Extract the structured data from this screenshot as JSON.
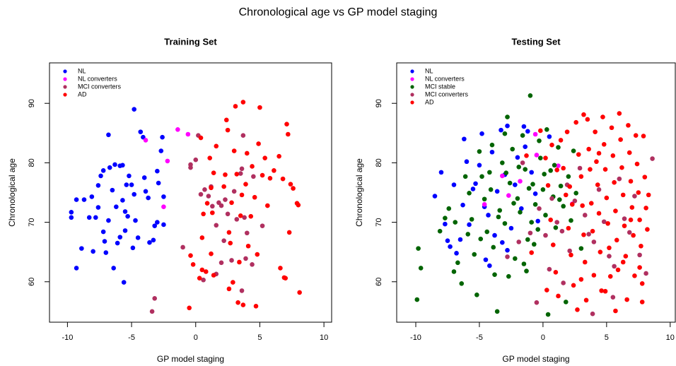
{
  "title": "Chronological age vs GP model staging",
  "chart_data": [
    {
      "type": "scatter",
      "title": "Training Set",
      "x_label": "GP model staging",
      "y_label": "Chronological age",
      "xlim": [
        -11.4,
        10.6
      ],
      "ylim": [
        53.2,
        96.8
      ],
      "xticks": [
        -10,
        -5,
        0,
        5,
        10
      ],
      "yticks": [
        60,
        70,
        80,
        90
      ],
      "legend": "top-left",
      "series": [
        {
          "name": "NL",
          "color": "#0000ff",
          "x": [
            -9.7,
            -9.7,
            -9.3,
            -9.3,
            -8.9,
            -8.7,
            -8.3,
            -8.1,
            -8,
            -7.8,
            -7.6,
            -7.6,
            -7.4,
            -7.2,
            -7.2,
            -7.1,
            -7,
            -6.8,
            -6.8,
            -6.7,
            -6.5,
            -6.4,
            -6.3,
            -6.2,
            -6.1,
            -5.9,
            -5.9,
            -5.7,
            -5.7,
            -5.6,
            -5.5,
            -5.5,
            -5.4,
            -5.3,
            -5.2,
            -5,
            -4.9,
            -4.8,
            -4.8,
            -4.7,
            -4.5,
            -4.3,
            -4.1,
            -4,
            -3.9,
            -3.7,
            -3.6,
            -3.3,
            -3.2,
            -3,
            -3,
            -2.9,
            -2.7,
            -2.6,
            -2.5,
            -2.5
          ],
          "y": [
            71.7,
            70.8,
            73.8,
            62.3,
            65.6,
            73.8,
            70.8,
            74.3,
            65.1,
            70.8,
            72.5,
            76.2,
            77.8,
            68.4,
            78.7,
            66.8,
            64.9,
            70.3,
            84.7,
            79.2,
            75.4,
            62.3,
            79.7,
            72.6,
            66.5,
            79.5,
            67.5,
            73.7,
            79.6,
            59.9,
            71.8,
            68.6,
            76.3,
            71,
            77.8,
            76.3,
            65.7,
            74.7,
            89,
            70.3,
            67.4,
            85.2,
            84.3,
            77.5,
            75.2,
            74.1,
            66.6,
            67,
            69.4,
            70,
            78.6,
            76.6,
            82,
            84.3,
            74.3,
            69.6
          ]
        },
        {
          "name": "NL converters",
          "color": "#ff00ff",
          "x": [
            -3.9,
            -2.2,
            -1.4,
            -0.6,
            -2.5
          ],
          "y": [
            83.8,
            80.3,
            85.6,
            84.8,
            72.6
          ]
        },
        {
          "name": "MCI converters",
          "color": "#b03060",
          "x": [
            -3.4,
            -3.2,
            -0.4,
            -0.4,
            0,
            0.2,
            0.4,
            0.7,
            1,
            1.2,
            1.3,
            1.6,
            1.8,
            2,
            2.2,
            2.3,
            2.5,
            2.8,
            3,
            3.2,
            3.5,
            3.6,
            3.7,
            3.8,
            3.9,
            4,
            4.4,
            4.5,
            5.2,
            1.6,
            -1,
            0.6,
            3.6,
            2
          ],
          "y": [
            55,
            57.2,
            79.7,
            79.2,
            80.5,
            84.6,
            74.7,
            75.5,
            74.4,
            76,
            72.7,
            69.5,
            73.3,
            72.8,
            66.9,
            73.8,
            71.4,
            63.6,
            75.2,
            70.5,
            78.2,
            79,
            84.6,
            70.8,
            63.9,
            68.2,
            62.9,
            77.7,
            69.4,
            61.3,
            65.8,
            60.3,
            58.5,
            63.2
          ]
        },
        {
          "name": "AD",
          "color": "#ff0000",
          "x": [
            -0.5,
            -0.4,
            -0.2,
            0.3,
            0.5,
            0.8,
            1.2,
            0.5,
            0.6,
            0.9,
            1.3,
            1.4,
            1.1,
            1.2,
            0.4,
            1.6,
            2.2,
            2.3,
            2.4,
            2.5,
            2.6,
            2.7,
            2.8,
            2.9,
            3,
            3.1,
            3.2,
            3.3,
            3.4,
            3.5,
            3.6,
            3.7,
            3.7,
            3.9,
            4,
            4.1,
            4.3,
            4.4,
            4.6,
            4.7,
            4.8,
            4.9,
            5,
            5.2,
            5.4,
            5.6,
            5.8,
            6.1,
            6.5,
            6.6,
            6.8,
            7,
            7.1,
            7.2,
            7.3,
            7.4,
            7.6,
            7.9,
            8,
            8.1,
            6.9,
            2.6,
            1.4
          ],
          "y": [
            55.6,
            64.4,
            62.9,
            60.6,
            62,
            61.7,
            64.7,
            67.4,
            71.4,
            73.2,
            71.6,
            78.3,
            80.8,
            75.8,
            84.2,
            82.8,
            76,
            78,
            87.2,
            85.5,
            68.3,
            66.5,
            73.3,
            59.9,
            82,
            89.5,
            78.1,
            56.5,
            63.3,
            71.1,
            74.6,
            90.2,
            56.1,
            76.4,
            81.6,
            66,
            71,
            79.4,
            74.2,
            55.9,
            64.6,
            83.2,
            89.3,
            77.9,
            80.8,
            72.8,
            77.4,
            78.7,
            81.1,
            62.3,
            77.3,
            60.6,
            86.5,
            84.8,
            68.3,
            76.4,
            75.7,
            73.2,
            72.9,
            58.2,
            60.7,
            58.8,
            61.1
          ]
        }
      ]
    },
    {
      "type": "scatter",
      "title": "Testing Set",
      "x_label": "GP model staging",
      "y_label": "Chronological age",
      "xlim": [
        -11.5,
        10.4
      ],
      "ylim": [
        53.2,
        96.8
      ],
      "xticks": [
        -10,
        -5,
        0,
        5,
        10
      ],
      "yticks": [
        60,
        70,
        80,
        90
      ],
      "legend": "top-left",
      "series": [
        {
          "name": "NL",
          "color": "#0000ff",
          "x": [
            -8.5,
            -8,
            -7.7,
            -7.5,
            -7.3,
            -7,
            -6.5,
            -6.3,
            -6.2,
            -6,
            -5.8,
            -5.5,
            -5.3,
            -5,
            -4.8,
            -4.6,
            -4.3,
            -4,
            -3.8,
            -3.6,
            -3.3,
            -3,
            -2.8,
            -2.5,
            -2.2,
            -2,
            -1.7,
            -1.4,
            -1.2,
            -0.9,
            -0.6,
            -0.4,
            -4.5,
            -3.2,
            -2.8,
            -6.8,
            -1.5,
            0.5,
            -4.2
          ],
          "y": [
            74.4,
            78.4,
            69.7,
            66.9,
            65.9,
            76.3,
            67.1,
            72.9,
            84,
            80.2,
            69.6,
            75.6,
            76.5,
            79.6,
            84.9,
            72.6,
            71.2,
            81.8,
            67.8,
            75.2,
            85.5,
            78,
            86.2,
            69,
            76.3,
            80.9,
            72.3,
            82.7,
            85.3,
            78.4,
            74.8,
            70.2,
            63.7,
            66.6,
            65.3,
            64.8,
            86.1,
            84.4,
            62.7
          ]
        },
        {
          "name": "NL converters",
          "color": "#ff00ff",
          "x": [
            -3.2,
            -1.8,
            -0.5,
            -0.6,
            1.2,
            -4.6,
            2.3,
            -2.7
          ],
          "y": [
            77.8,
            76.9,
            81.3,
            84.8,
            79.5,
            73,
            73.1,
            74.5
          ]
        },
        {
          "name": "MCI stable",
          "color": "#006400",
          "x": [
            -9.8,
            -9.9,
            -9.6,
            -8.1,
            -7.7,
            -7.4,
            -7,
            -6.7,
            -6.4,
            -6.1,
            -5.8,
            -5.6,
            -5.4,
            -5.2,
            -5,
            -4.8,
            -4.6,
            -4.4,
            -4.2,
            -4,
            -3.8,
            -3.6,
            -3.4,
            -3.2,
            -3,
            -2.8,
            -2.6,
            -2.4,
            -2.2,
            -2,
            -1.8,
            -1.6,
            -1.4,
            -1.2,
            -1,
            -0.8,
            -0.6,
            -0.4,
            -0.2,
            0,
            0.2,
            0.4,
            0.6,
            0.8,
            1,
            1.2,
            1.4,
            1.6,
            1.8,
            2,
            2.2,
            2.6,
            3,
            -3,
            -1.5,
            -2.7,
            -0.9,
            0.3,
            -4.9,
            -3.9,
            -2.3,
            -1.1,
            0.1,
            -5.9,
            -6.9,
            -4.1,
            -1.9,
            -0.3,
            1.3,
            -2.9,
            -1.3,
            0.9,
            -3.5,
            -0.7,
            2.4
          ],
          "y": [
            65.6,
            57,
            62.3,
            68.5,
            70.7,
            72.3,
            61.7,
            63.2,
            59.7,
            77.7,
            74.9,
            70.5,
            64.6,
            57.8,
            81.9,
            77.7,
            73.9,
            68.4,
            78.4,
            83,
            61.2,
            55,
            72,
            80,
            69.8,
            87.7,
            76.6,
            82.3,
            63.9,
            74,
            71.7,
            84.6,
            78.9,
            67.1,
            91.3,
            76.4,
            73,
            68.8,
            80.8,
            75.5,
            71.2,
            54.5,
            78.7,
            74.3,
            69.1,
            82.6,
            76.1,
            72.7,
            56.6,
            77.7,
            70.3,
            74.9,
            65.6,
            84.9,
            63,
            60.9,
            70,
            85.6,
            67.2,
            65.8,
            73.2,
            75.7,
            78.1,
            68,
            70,
            75.5,
            79.3,
            83.7,
            73.8,
            78.3,
            61.8,
            79.6,
            70.9,
            66.3,
            82
          ]
        },
        {
          "name": "MCI converters",
          "color": "#b03060",
          "x": [
            -2.8,
            -1.9,
            -1,
            -0.3,
            0.2,
            0.7,
            1.1,
            1.5,
            1.9,
            2.1,
            2.5,
            2.9,
            3.3,
            3.6,
            4,
            4.4,
            4.8,
            5.2,
            5.6,
            6,
            6.4,
            6.8,
            7.2,
            7.6,
            8.1,
            8.6,
            3.9,
            -0.5,
            5.5,
            1.6,
            -1.6,
            0.5
          ],
          "y": [
            64.2,
            66.7,
            68.2,
            72.3,
            67.8,
            74,
            70,
            68.5,
            76.3,
            65.2,
            73.6,
            79.1,
            71.2,
            68,
            66.7,
            75.5,
            70.1,
            64.3,
            62.6,
            77.3,
            70.6,
            68.3,
            74.4,
            64.5,
            61.4,
            80.7,
            54.6,
            56.5,
            57.4,
            59.8,
            80,
            62.1
          ]
        },
        {
          "name": "AD",
          "color": "#ff0000",
          "x": [
            -0.2,
            0.2,
            0.4,
            0.6,
            0.8,
            1,
            1.2,
            1.4,
            1.6,
            1.8,
            2,
            2.2,
            2.4,
            2.6,
            2.8,
            3,
            3.1,
            3.2,
            3.3,
            3.4,
            3.5,
            3.6,
            3.7,
            3.8,
            3.9,
            4,
            4.1,
            4.2,
            4.3,
            4.4,
            4.5,
            4.6,
            4.7,
            4.8,
            4.9,
            5,
            5.1,
            5.2,
            5.3,
            5.4,
            5.5,
            5.6,
            5.7,
            5.8,
            5.9,
            6,
            6.1,
            6.2,
            6.3,
            6.4,
            6.5,
            6.6,
            6.7,
            6.8,
            6.9,
            7,
            7.1,
            7.2,
            7.3,
            7.4,
            7.5,
            7.6,
            7.7,
            7.8,
            7.9,
            8,
            8.1,
            8.2,
            8.3,
            7.8,
            -0.9,
            0.3,
            1.9,
            2.7,
            4.9,
            3.2,
            1.1,
            2.3,
            5.7,
            6.3,
            7.6,
            -1.3,
            0.7,
            2.1,
            4.4,
            6.9,
            3
          ],
          "y": [
            85.4,
            80.8,
            76.2,
            70.4,
            66.2,
            61.6,
            57.6,
            83.8,
            79.1,
            74.6,
            69,
            64.5,
            59.4,
            86.8,
            81.4,
            77.7,
            72.8,
            67.9,
            63.3,
            56.9,
            87.3,
            82.3,
            78.9,
            73.2,
            68.5,
            61.1,
            85.2,
            80.2,
            76.3,
            71.5,
            65,
            58.5,
            87.7,
            83.1,
            78.9,
            74.1,
            69.8,
            65.7,
            60.9,
            85.9,
            81.2,
            76.7,
            71.9,
            67,
            62,
            88.3,
            83.9,
            79.2,
            74.6,
            69.4,
            64.3,
            57,
            86.3,
            81.7,
            76.9,
            72.5,
            67.8,
            61,
            84.6,
            79.8,
            75,
            70.4,
            66,
            56.6,
            84.5,
            77.6,
            72.4,
            68.8,
            74.6,
            59.7,
            64.9,
            58.6,
            85.2,
            55.3,
            58.4,
            88.1,
            78.8,
            73,
            55.1,
            63.3,
            62.4,
            81.2,
            83,
            76,
            81.6,
            70.4,
            60.4
          ]
        }
      ]
    }
  ]
}
